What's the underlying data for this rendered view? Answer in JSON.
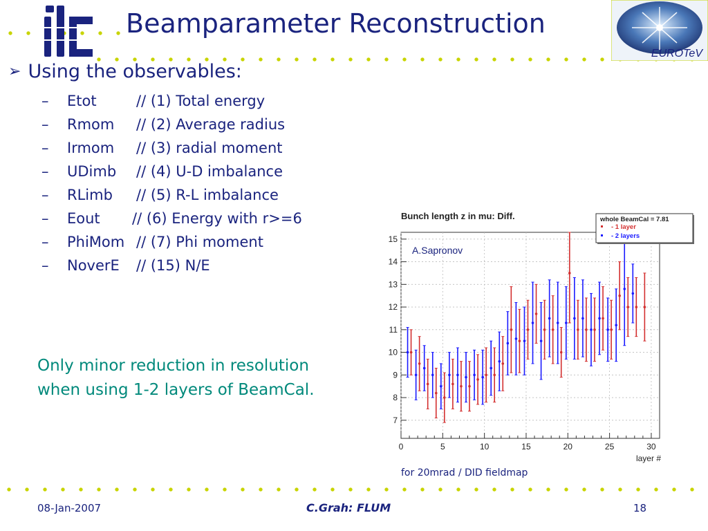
{
  "slide": {
    "title": "Beamparameter Reconstruction",
    "logo_text": "ilc",
    "partner_logo_text": "EUROTeV",
    "bullet": "Using the observables:",
    "observables": [
      {
        "name": "Etot",
        "desc": "// (1) Total energy"
      },
      {
        "name": "Rmom",
        "desc": "// (2) Average radius"
      },
      {
        "name": "Irmom",
        "desc": "// (3) radial moment"
      },
      {
        "name": "UDimb",
        "desc": "// (4) U-D imbalance"
      },
      {
        "name": "RLimb",
        "desc": "// (5) R-L imbalance"
      },
      {
        "name": "Eout",
        "desc": "// (6) Energy with r>=6"
      },
      {
        "name": "PhiMom",
        "desc": "// (7) Phi moment"
      },
      {
        "name": "NoverE",
        "desc": "// (15) N/E"
      }
    ],
    "note_line1": "Only minor reduction in resolution",
    "note_line2": "when using 1-2 layers of BeamCal.",
    "caption": "for 20mrad / DID fieldmap"
  },
  "footer": {
    "date": "08-Jan-2007",
    "author": "C.Grah: FLUM",
    "page": "18"
  },
  "colors": {
    "title": "#1a237e",
    "note": "#00897b",
    "dots": "#c8d400",
    "series_red": "#d32f2f",
    "series_blue": "#1a1aff"
  },
  "chart_data": {
    "type": "scatter",
    "title": "Bunch length z in mu: Diff.",
    "xlabel": "layer #",
    "ylabel": "",
    "xlim": [
      0,
      31
    ],
    "ylim": [
      6.2,
      15.3
    ],
    "x_ticks": [
      0,
      5,
      10,
      15,
      20,
      25,
      30
    ],
    "y_ticks": [
      7,
      8,
      9,
      10,
      11,
      12,
      13,
      14,
      15
    ],
    "annotation": "A.Sapronov",
    "legend": {
      "header": "whole BeamCal = 7.81",
      "position": "top-right"
    },
    "grid": true,
    "series": [
      {
        "name": "- 1 layer",
        "color": "#d32f2f",
        "points": [
          {
            "x": 1,
            "y": 10.0,
            "err": 1.0
          },
          {
            "x": 2,
            "y": 9.5,
            "err": 1.2
          },
          {
            "x": 3,
            "y": 8.6,
            "err": 1.1
          },
          {
            "x": 4,
            "y": 8.2,
            "err": 1.1
          },
          {
            "x": 5,
            "y": 8.0,
            "err": 1.1
          },
          {
            "x": 6,
            "y": 8.6,
            "err": 1.1
          },
          {
            "x": 7,
            "y": 8.5,
            "err": 1.1
          },
          {
            "x": 8,
            "y": 8.5,
            "err": 1.1
          },
          {
            "x": 9,
            "y": 8.8,
            "err": 1.1
          },
          {
            "x": 10,
            "y": 9.0,
            "err": 1.2
          },
          {
            "x": 11,
            "y": 9.0,
            "err": 1.2
          },
          {
            "x": 12,
            "y": 9.5,
            "err": 1.2
          },
          {
            "x": 13,
            "y": 11.0,
            "err": 1.9
          },
          {
            "x": 14,
            "y": 10.5,
            "err": 1.4
          },
          {
            "x": 15,
            "y": 11.0,
            "err": 1.3
          },
          {
            "x": 16,
            "y": 11.7,
            "err": 1.3
          },
          {
            "x": 17,
            "y": 11.0,
            "err": 1.3
          },
          {
            "x": 18,
            "y": 11.0,
            "err": 1.5
          },
          {
            "x": 19,
            "y": 10.0,
            "err": 1.1
          },
          {
            "x": 20,
            "y": 13.5,
            "err": 2.2
          },
          {
            "x": 21,
            "y": 11.0,
            "err": 1.3
          },
          {
            "x": 22,
            "y": 11.0,
            "err": 1.4
          },
          {
            "x": 23,
            "y": 11.0,
            "err": 1.4
          },
          {
            "x": 24,
            "y": 11.5,
            "err": 1.4
          },
          {
            "x": 25,
            "y": 11.0,
            "err": 1.3
          },
          {
            "x": 26,
            "y": 12.5,
            "err": 1.5
          },
          {
            "x": 27,
            "y": 12.0,
            "err": 1.3
          },
          {
            "x": 28,
            "y": 12.0,
            "err": 1.3
          },
          {
            "x": 29,
            "y": 12.0,
            "err": 1.5
          }
        ]
      },
      {
        "name": "- 2 layers",
        "color": "#1a1aff",
        "points": [
          {
            "x": 1,
            "y": 10.0,
            "err": 1.1
          },
          {
            "x": 2,
            "y": 9.0,
            "err": 1.1
          },
          {
            "x": 3,
            "y": 9.3,
            "err": 1.0
          },
          {
            "x": 4,
            "y": 9.0,
            "err": 1.0
          },
          {
            "x": 5,
            "y": 8.5,
            "err": 1.0
          },
          {
            "x": 6,
            "y": 9.0,
            "err": 1.0
          },
          {
            "x": 7,
            "y": 9.0,
            "err": 1.2
          },
          {
            "x": 8,
            "y": 8.9,
            "err": 1.1
          },
          {
            "x": 9,
            "y": 9.0,
            "err": 1.1
          },
          {
            "x": 10,
            "y": 8.9,
            "err": 1.2
          },
          {
            "x": 11,
            "y": 9.3,
            "err": 1.2
          },
          {
            "x": 12,
            "y": 9.6,
            "err": 1.3
          },
          {
            "x": 13,
            "y": 10.4,
            "err": 1.4
          },
          {
            "x": 14,
            "y": 10.6,
            "err": 1.6
          },
          {
            "x": 15,
            "y": 10.5,
            "err": 1.5
          },
          {
            "x": 16,
            "y": 11.3,
            "err": 1.8
          },
          {
            "x": 17,
            "y": 10.5,
            "err": 1.7
          },
          {
            "x": 18,
            "y": 11.5,
            "err": 1.7
          },
          {
            "x": 19,
            "y": 11.3,
            "err": 1.8
          },
          {
            "x": 20,
            "y": 11.3,
            "err": 1.6
          },
          {
            "x": 21,
            "y": 11.5,
            "err": 1.8
          },
          {
            "x": 22,
            "y": 11.5,
            "err": 1.7
          },
          {
            "x": 23,
            "y": 11.0,
            "err": 1.6
          },
          {
            "x": 24,
            "y": 11.5,
            "err": 1.6
          },
          {
            "x": 25,
            "y": 11.0,
            "err": 1.4
          },
          {
            "x": 26,
            "y": 11.2,
            "err": 1.6
          },
          {
            "x": 27,
            "y": 12.8,
            "err": 2.5
          },
          {
            "x": 28,
            "y": 12.6,
            "err": 1.3
          }
        ]
      }
    ]
  }
}
